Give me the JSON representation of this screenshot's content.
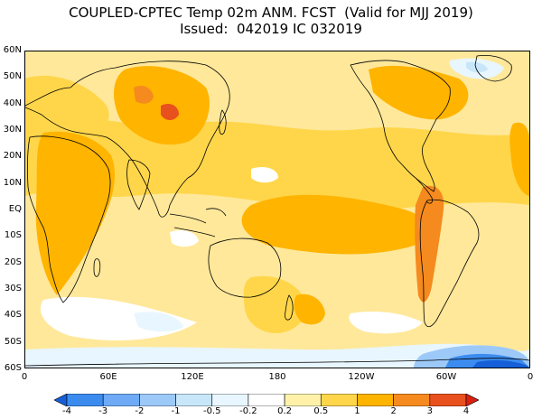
{
  "title": {
    "line1": "COUPLED-CPTEC Temp 02m ANM. FCST  (Valid for MJJ 2019)",
    "line2": "Issued:  042019 IC 032019"
  },
  "y_axis": {
    "labels": [
      "60N",
      "50N",
      "40N",
      "30N",
      "20N",
      "10N",
      "EQ",
      "10S",
      "20S",
      "30S",
      "40S",
      "50S",
      "60S"
    ]
  },
  "x_axis": {
    "labels": [
      "0",
      "60E",
      "120E",
      "180",
      "120W",
      "60W",
      "0"
    ]
  },
  "colorbar": {
    "labels": [
      "-4",
      "-3",
      "-2",
      "-1",
      "-0.5",
      "-0.2",
      "0.2",
      "0.5",
      "1",
      "2",
      "3",
      "4"
    ],
    "colors": [
      "#1560d8",
      "#3c8cf0",
      "#6eaaf5",
      "#9cc9f8",
      "#c8e6fa",
      "#e8f6ff",
      "#ffffff",
      "#fff2a8",
      "#ffd64a",
      "#ffb400",
      "#f58a1e",
      "#e8501e",
      "#d82010"
    ]
  },
  "map_colors": {
    "land_line": "#000000",
    "base": "#ffe89a"
  }
}
